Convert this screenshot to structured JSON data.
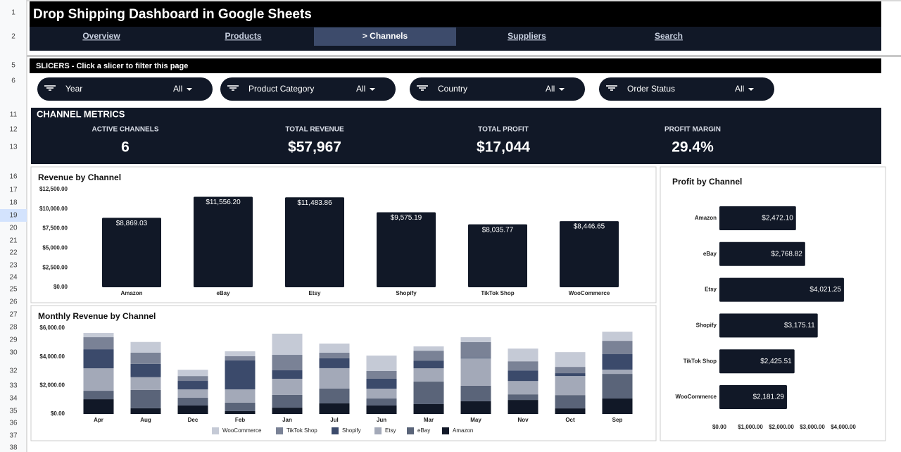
{
  "row_numbers": [
    "1",
    "2",
    "5",
    "6",
    "11",
    "12",
    "13",
    "16",
    "17",
    "18",
    "19",
    "20",
    "21",
    "22",
    "23",
    "24",
    "25",
    "26",
    "27",
    "28",
    "29",
    "30",
    "32",
    "33",
    "34",
    "35",
    "36",
    "37",
    "38"
  ],
  "header": {
    "title": "Drop Shipping Dashboard in Google Sheets",
    "nav": [
      {
        "label": "Overview",
        "active": false
      },
      {
        "label": "Products",
        "active": false
      },
      {
        "label": "> Channels",
        "active": true
      },
      {
        "label": "Suppliers",
        "active": false
      },
      {
        "label": "Search",
        "active": false
      }
    ]
  },
  "slicers": {
    "caption": "SLICERS  -  Click a slicer to filter this page",
    "items": [
      {
        "name": "Year",
        "value": "All"
      },
      {
        "name": "Product Category",
        "value": "All"
      },
      {
        "name": "Country",
        "value": "All"
      },
      {
        "name": "Order Status",
        "value": "All"
      }
    ]
  },
  "metrics": {
    "title": "CHANNEL METRICS",
    "items": [
      {
        "label": "ACTIVE CHANNELS",
        "value": "6"
      },
      {
        "label": "TOTAL REVENUE",
        "value": "$57,967"
      },
      {
        "label": "TOTAL PROFIT",
        "value": "$17,044"
      },
      {
        "label": "PROFIT MARGIN",
        "value": "29.4%"
      }
    ]
  },
  "chart_data": [
    {
      "type": "bar",
      "title": "Revenue by Channel",
      "color": "#111827",
      "grid": false,
      "categories": [
        "Amazon",
        "eBay",
        "Etsy",
        "Shopify",
        "TikTok Shop",
        "WooCommerce"
      ],
      "values": [
        8869.03,
        11556.2,
        11483.86,
        9575.19,
        8035.77,
        8446.65
      ],
      "value_labels": [
        "$8,869.03",
        "$11,556.20",
        "$11,483.86",
        "$9,575.19",
        "$8,035.77",
        "$8,446.65"
      ],
      "ylim": [
        0,
        12500
      ],
      "yticks": [
        {
          "value": 0,
          "label": "$0.00"
        },
        {
          "value": 2500,
          "label": "$2,500.00"
        },
        {
          "value": 5000,
          "label": "$5,000.00"
        },
        {
          "value": 7500,
          "label": "$7,500.00"
        },
        {
          "value": 10000,
          "label": "$10,000.00"
        },
        {
          "value": 12500,
          "label": "$12,500.00"
        }
      ]
    },
    {
      "type": "stacked_bar",
      "title": "Monthly Revenue by Channel",
      "grid": false,
      "legend": "bottom",
      "categories": [
        "Apr",
        "Aug",
        "Dec",
        "Feb",
        "Jan",
        "Jul",
        "Jun",
        "Mar",
        "May",
        "Nov",
        "Oct",
        "Sep"
      ],
      "series": [
        {
          "name": "WooCommerce",
          "color": "#c5cad6",
          "values": [
            300,
            740,
            440,
            340,
            1480,
            640,
            1080,
            300,
            340,
            890,
            1030,
            640
          ]
        },
        {
          "name": "TikTok Shop",
          "color": "#7a8296",
          "values": [
            840,
            790,
            340,
            300,
            1080,
            390,
            540,
            690,
            1080,
            640,
            440,
            930
          ]
        },
        {
          "name": "Shopify",
          "color": "#3b4a6b",
          "values": [
            1330,
            930,
            590,
            2020,
            590,
            690,
            690,
            540,
            50,
            740,
            200,
            1080
          ]
        },
        {
          "name": "Etsy",
          "color": "#a3a9b8",
          "values": [
            1570,
            890,
            590,
            930,
            1130,
            1430,
            690,
            930,
            1920,
            930,
            1330,
            300
          ]
        },
        {
          "name": "eBay",
          "color": "#5a6479",
          "values": [
            590,
            1280,
            540,
            590,
            890,
            1030,
            490,
            1570,
            1080,
            390,
            930,
            1720
          ]
        },
        {
          "name": "Amazon",
          "color": "#111827",
          "values": [
            1030,
            400,
            590,
            200,
            440,
            740,
            590,
            690,
            890,
            980,
            390,
            1080
          ]
        }
      ],
      "ylim": [
        0,
        6000
      ],
      "yticks": [
        {
          "value": 0,
          "label": "$0.00"
        },
        {
          "value": 2000,
          "label": "$2,000.00"
        },
        {
          "value": 4000,
          "label": "$4,000.00"
        },
        {
          "value": 6000,
          "label": "$6,000.00"
        }
      ]
    },
    {
      "type": "barh",
      "title": "Profit by Channel",
      "color": "#111827",
      "grid": false,
      "categories": [
        "Amazon",
        "eBay",
        "Etsy",
        "Shopify",
        "TikTok Shop",
        "WooCommerce"
      ],
      "values": [
        2472.1,
        2768.82,
        4021.25,
        3175.11,
        2425.51,
        2181.29
      ],
      "value_labels": [
        "$2,472.10",
        "$2,768.82",
        "$4,021.25",
        "$3,175.11",
        "$2,425.51",
        "$2,181.29"
      ],
      "xlim": [
        0,
        4000
      ],
      "xticks": [
        {
          "value": 0,
          "label": "$0.00"
        },
        {
          "value": 1000,
          "label": "$1,000.00"
        },
        {
          "value": 2000,
          "label": "$2,000.00"
        },
        {
          "value": 3000,
          "label": "$3,000.00"
        },
        {
          "value": 4000,
          "label": "$4,000.00"
        }
      ]
    }
  ]
}
